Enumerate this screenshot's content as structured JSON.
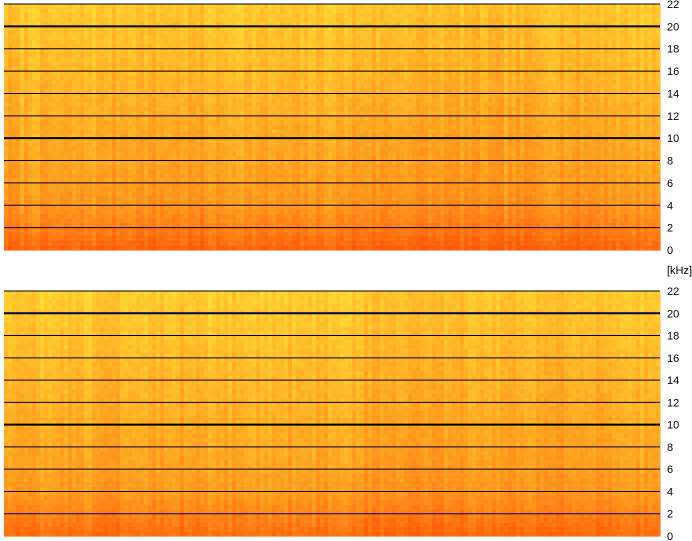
{
  "unit_label": "[kHz]",
  "colors": {
    "low_level": "#ffe838",
    "mid_level": "#ffa020",
    "high_level": "#ff5a0a",
    "grid_line": "#000000"
  },
  "chart_data": [
    {
      "type": "heatmap",
      "title": "",
      "xlabel": "",
      "ylabel": "[kHz]",
      "ylim": [
        0,
        22
      ],
      "yticks": [
        "0",
        "2",
        "4",
        "6",
        "8",
        "10",
        "12",
        "14",
        "16",
        "18",
        "20",
        "22"
      ],
      "major_gridlines": [
        10,
        20
      ],
      "grid": true,
      "colormap": "yellow-orange-red",
      "energy_profile_by_frequency": [
        {
          "freq_khz": 0,
          "level": 0.9
        },
        {
          "freq_khz": 2,
          "level": 0.7
        },
        {
          "freq_khz": 4,
          "level": 0.55
        },
        {
          "freq_khz": 8,
          "level": 0.45
        },
        {
          "freq_khz": 14,
          "level": 0.35
        },
        {
          "freq_khz": 22,
          "level": 0.2
        }
      ]
    },
    {
      "type": "heatmap",
      "title": "",
      "xlabel": "",
      "ylabel": "[kHz]",
      "ylim": [
        0,
        22
      ],
      "yticks": [
        "0",
        "2",
        "4",
        "6",
        "8",
        "10",
        "12",
        "14",
        "16",
        "18",
        "20",
        "22"
      ],
      "major_gridlines": [
        10,
        20
      ],
      "grid": true,
      "colormap": "yellow-orange-red",
      "energy_profile_by_frequency": [
        {
          "freq_khz": 0,
          "level": 0.85
        },
        {
          "freq_khz": 2,
          "level": 0.68
        },
        {
          "freq_khz": 4,
          "level": 0.52
        },
        {
          "freq_khz": 8,
          "level": 0.43
        },
        {
          "freq_khz": 14,
          "level": 0.33
        },
        {
          "freq_khz": 22,
          "level": 0.18
        }
      ]
    }
  ]
}
